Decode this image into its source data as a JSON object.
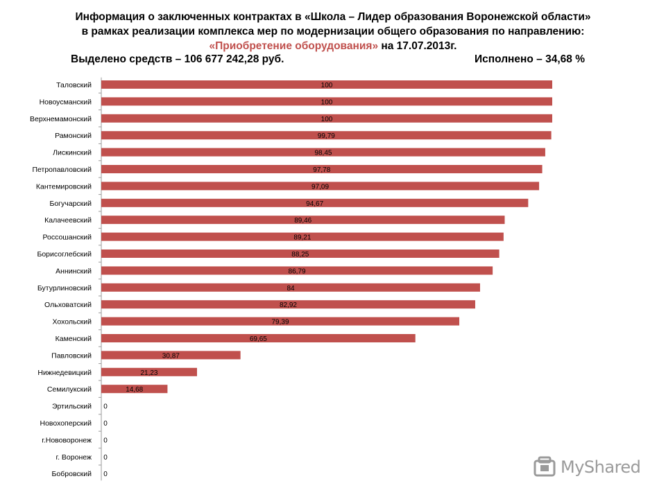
{
  "header": {
    "line1": "Информация  о заключенных  контрактах  в «Школа – Лидер образования  Воронежской  области»",
    "line2": "в рамках реализации  комплекса мер по модернизации  общего образования  по направлению:",
    "line3_red": "«Приобретение  оборудования»",
    "line3_black": "  на 17.07.2013г.",
    "allocated": "Выделено средств  – 106 677 242,28  руб.",
    "done": "Исполнено – 34,68  %"
  },
  "colors": {
    "bar": "#c0504d",
    "axis": "#9a9a9a",
    "title_red": "#c0504d"
  },
  "chart_data": {
    "type": "bar",
    "orientation": "horizontal",
    "categories": [
      "Таловский",
      "Новоусманский",
      "Верхнемамонский",
      "Рамонский",
      "Лискинский",
      "Петропавловский",
      "Кантемировский",
      "Богучарский",
      "Калачеевский",
      "Россошанский",
      "Борисоглебский",
      "Аннинский",
      "Бутурлиновский",
      "Ольховатский",
      "Хохольский",
      "Каменский",
      "Павловский",
      "Нижнедевицкий",
      "Семилукский",
      "Эртильский",
      "Новохоперский",
      "г.Нововоронеж",
      "г. Воронеж",
      "Бобровский"
    ],
    "values": [
      100,
      100,
      100,
      99.79,
      98.45,
      97.78,
      97.09,
      94.67,
      89.46,
      89.21,
      88.25,
      86.79,
      84,
      82.92,
      79.39,
      69.65,
      30.87,
      21.23,
      14.68,
      0,
      0,
      0,
      0,
      0
    ],
    "value_labels": [
      "100",
      "100",
      "100",
      "99,79",
      "98,45",
      "97,78",
      "97,09",
      "94,67",
      "89,46",
      "89,21",
      "88,25",
      "86,79",
      "84",
      "82,92",
      "79,39",
      "69,65",
      "30,87",
      "21,23",
      "14,68",
      "0",
      "0",
      "0",
      "0",
      "0"
    ],
    "xlim": [
      0,
      100
    ]
  },
  "watermark": {
    "text": "MyShared",
    "icon": "myshared-logo-icon"
  }
}
